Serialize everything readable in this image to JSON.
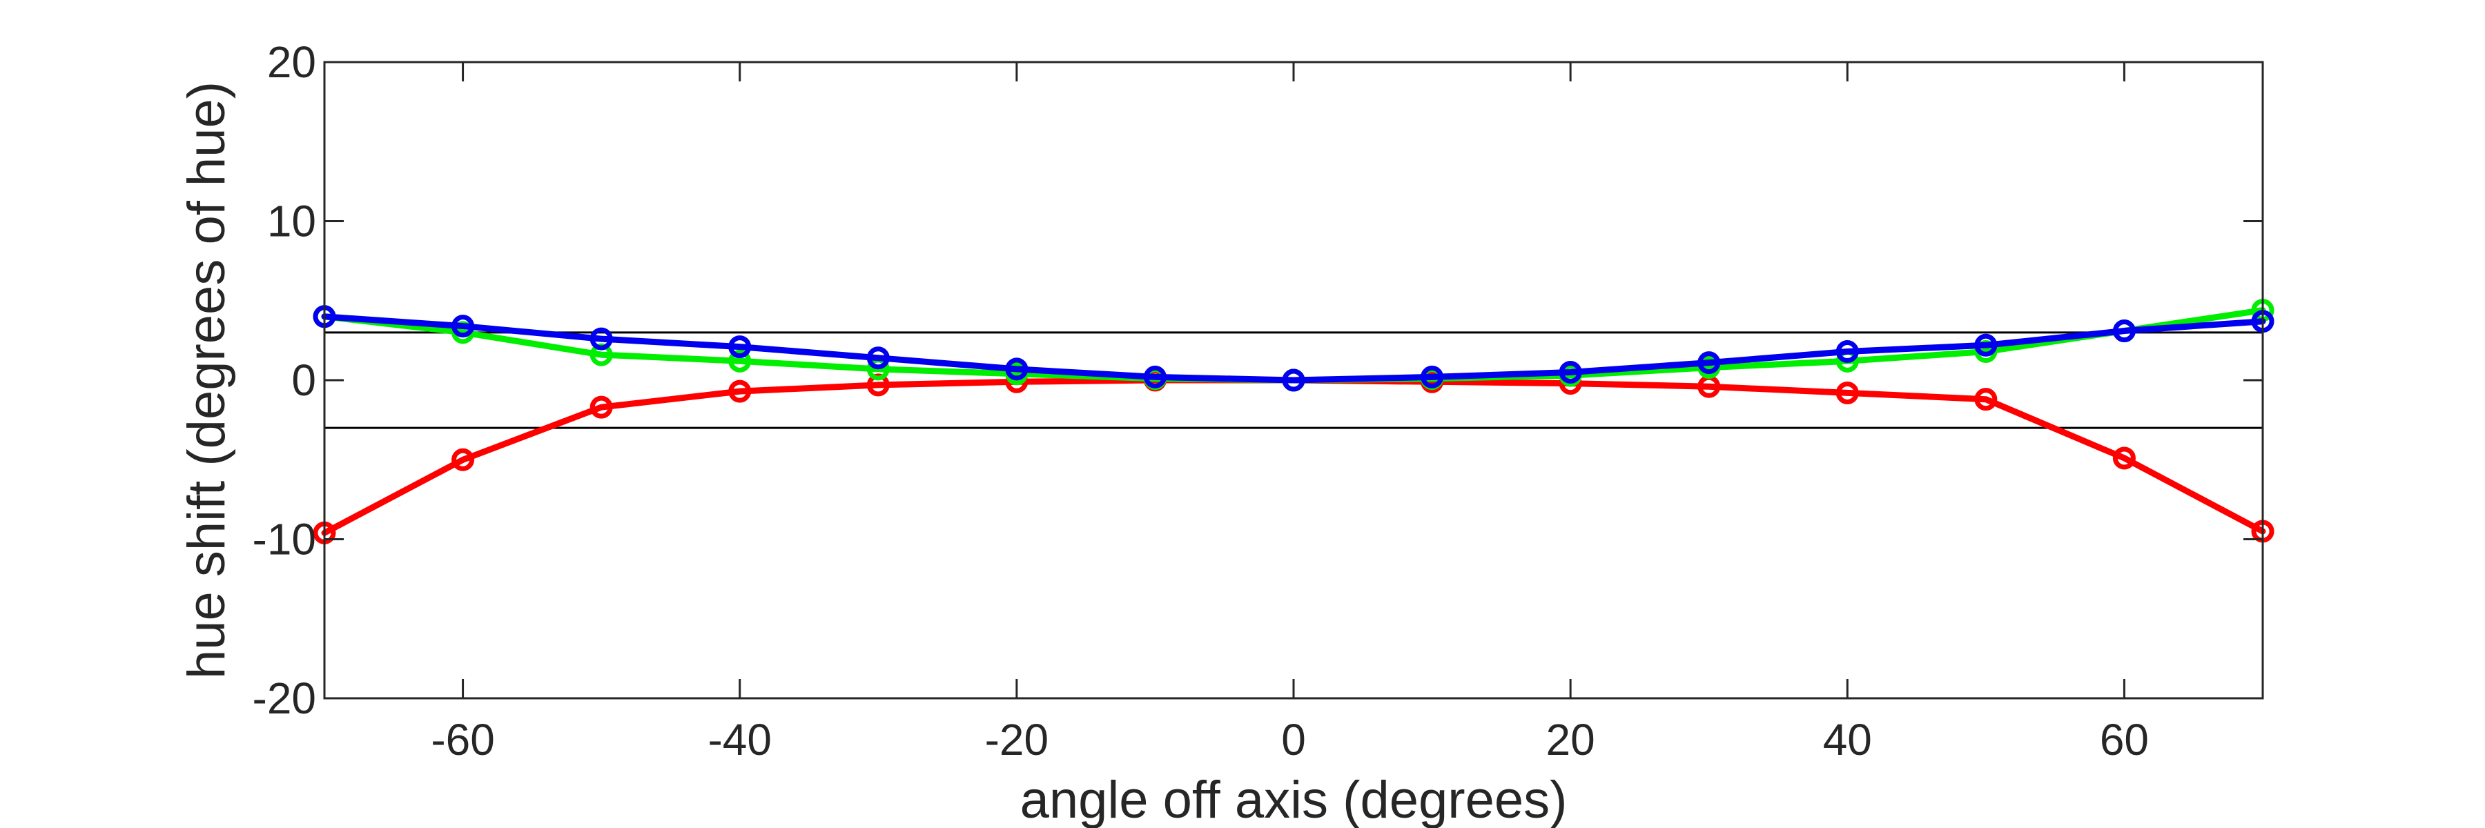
{
  "chart_data": {
    "type": "line",
    "xlabel": "angle off axis (degrees)",
    "ylabel": "hue shift (degrees of hue)",
    "xlim": [
      -70,
      70
    ],
    "ylim": [
      -20,
      20
    ],
    "x_ticks": [
      -60,
      -40,
      -20,
      0,
      20,
      40,
      60
    ],
    "y_ticks": [
      -20,
      -10,
      0,
      10,
      20
    ],
    "grid": false,
    "reference_lines": [
      3,
      -3
    ],
    "x": [
      -70,
      -60,
      -50,
      -40,
      -30,
      -20,
      -10,
      0,
      10,
      20,
      30,
      40,
      50,
      60,
      70
    ],
    "series": [
      {
        "color": "#ff0000",
        "values": [
          -9.6,
          -5.0,
          -1.7,
          -0.7,
          -0.3,
          -0.1,
          0.0,
          0.0,
          -0.1,
          -0.2,
          -0.4,
          -0.8,
          -1.2,
          -4.9,
          -9.5
        ]
      },
      {
        "color": "#00ee00",
        "values": [
          4.0,
          3.0,
          1.6,
          1.2,
          0.7,
          0.4,
          0.1,
          0.0,
          0.1,
          0.3,
          0.8,
          1.2,
          1.8,
          3.1,
          4.4
        ]
      },
      {
        "color": "#0000ee",
        "values": [
          4.0,
          3.4,
          2.6,
          2.1,
          1.4,
          0.7,
          0.2,
          0.0,
          0.2,
          0.5,
          1.1,
          1.8,
          2.2,
          3.1,
          3.7
        ]
      }
    ]
  }
}
